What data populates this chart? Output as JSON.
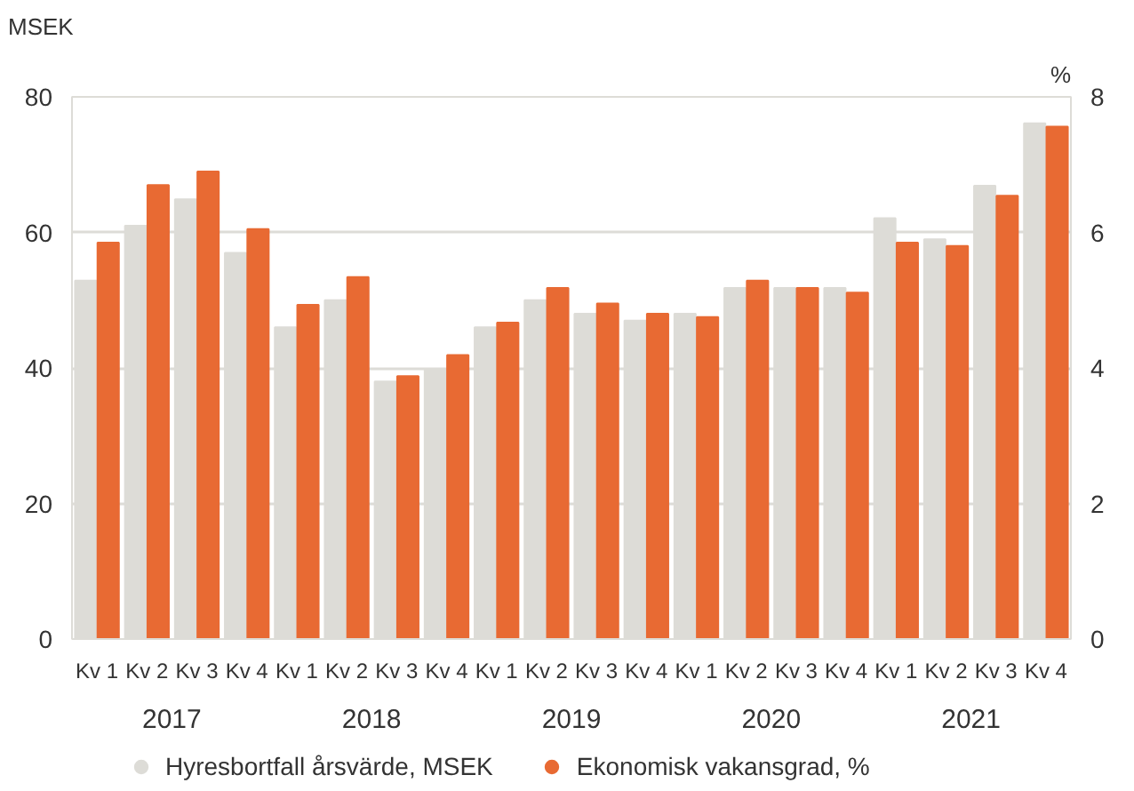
{
  "chart_data": {
    "type": "bar",
    "ylabel": "MSEK",
    "y2label": "%",
    "categories": [
      "Kv 1",
      "Kv 2",
      "Kv 3",
      "Kv 4",
      "Kv 1",
      "Kv 2",
      "Kv 3",
      "Kv 4",
      "Kv 1",
      "Kv 2",
      "Kv 3",
      "Kv 4",
      "Kv 1",
      "Kv 2",
      "Kv 3",
      "Kv 4",
      "Kv 1",
      "Kv 2",
      "Kv 3",
      "Kv 4"
    ],
    "annotations": [
      "2017",
      "2018",
      "2019",
      "2020",
      "2021"
    ],
    "series": [
      {
        "name": "Hyresbortfall årsvärde, MSEK",
        "color": "#dddcd7",
        "values": [
          52.9,
          61.0,
          64.9,
          57.0,
          46.0,
          50.0,
          38.0,
          39.8,
          46.0,
          50.0,
          48.0,
          47.0,
          48.0,
          51.8,
          51.8,
          51.8,
          62.1,
          59.0,
          66.9,
          76.1
        ]
      },
      {
        "name": "Ekonomisk vakansgrad, %",
        "color": "#e86a33",
        "axis": "y2",
        "values": [
          5.85,
          6.7,
          6.9,
          6.05,
          4.93,
          5.34,
          3.88,
          4.19,
          4.67,
          5.18,
          4.95,
          4.8,
          4.75,
          5.29,
          5.18,
          5.11,
          5.85,
          5.8,
          6.54,
          7.56
        ]
      }
    ],
    "ylim": [
      0,
      80
    ],
    "yticks": [
      0,
      20,
      40,
      60,
      80
    ],
    "y2lim": [
      0,
      8
    ],
    "y2ticks": [
      0,
      2,
      4,
      6,
      8
    ],
    "grid": "y",
    "legend": "bottom"
  }
}
